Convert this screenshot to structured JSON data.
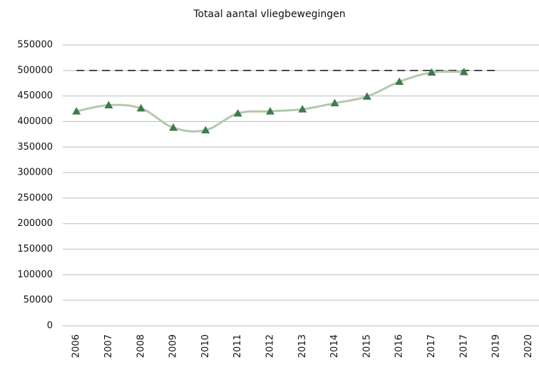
{
  "chart_data": {
    "type": "line",
    "title": "Totaal aantal vliegbewegingen",
    "categories": [
      "2006",
      "2007",
      "2008",
      "2009",
      "2010",
      "2011",
      "2012",
      "2013",
      "2014",
      "2015",
      "2016",
      "2017",
      "2017",
      "2019",
      "2020"
    ],
    "series": [
      {
        "color": "#b4c8ae",
        "marker_color": "#3f7b4b",
        "smooth": true,
        "values": [
          420000,
          432000,
          426000,
          388000,
          383000,
          416000,
          420000,
          424000,
          436000,
          449000,
          478000,
          496000,
          497000,
          null,
          null
        ]
      },
      {
        "color": "#222222",
        "dashed": true,
        "values": [
          500000,
          500000,
          500000,
          500000,
          500000,
          500000,
          500000,
          500000,
          500000,
          500000,
          500000,
          500000,
          500000,
          500000,
          null
        ]
      }
    ],
    "ylim": [
      0,
      550000
    ],
    "yticks": [
      0,
      50000,
      100000,
      150000,
      200000,
      250000,
      300000,
      350000,
      400000,
      450000,
      500000,
      550000
    ],
    "grid": true
  }
}
